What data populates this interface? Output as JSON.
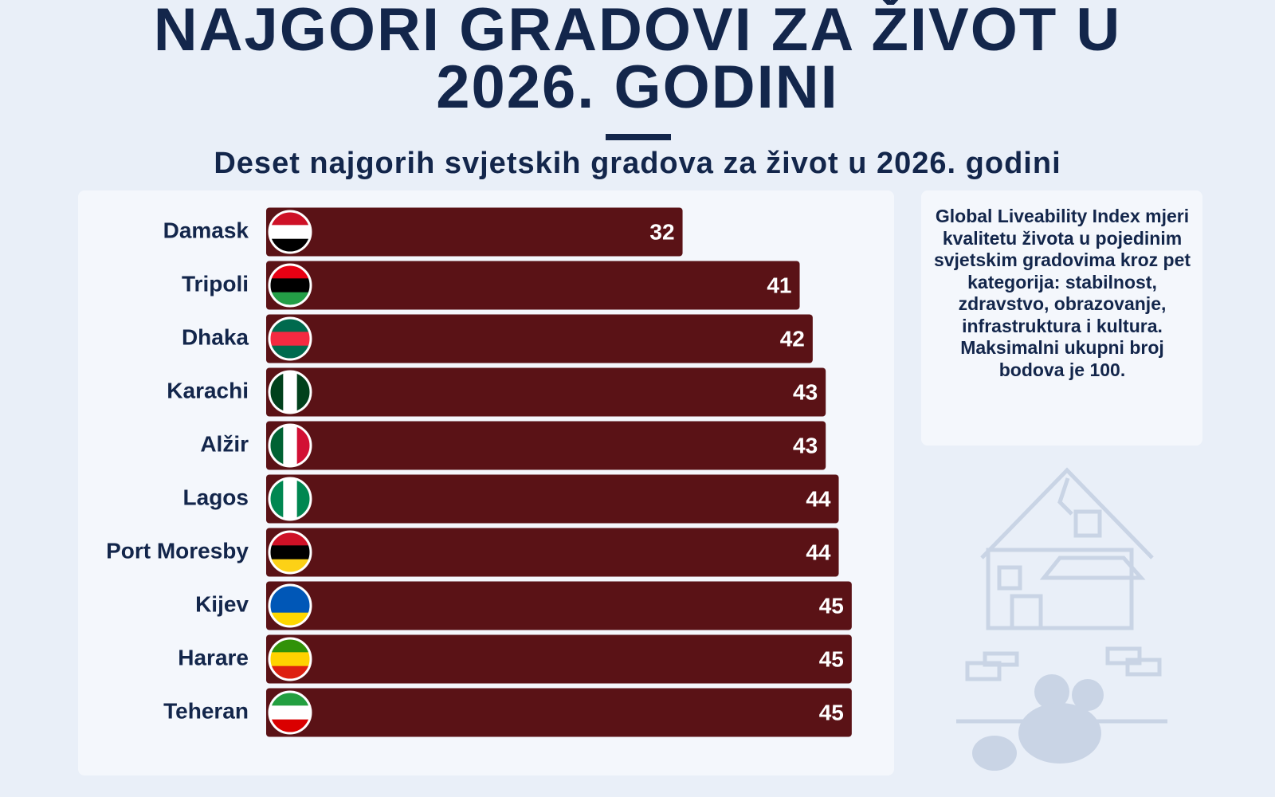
{
  "chart_data": {
    "type": "bar",
    "orientation": "horizontal",
    "title": "NAJGORI GRADOVI ZA ŽIVOT U 2026. GODINI",
    "subtitle": "Deset najgorih svjetskih gradova za život u 2026. godini",
    "categories": [
      "Damask",
      "Tripoli",
      "Dhaka",
      "Karachi",
      "Alžir",
      "Lagos",
      "Port Moresby",
      "Kijev",
      "Harare",
      "Teheran"
    ],
    "values": [
      32,
      41,
      42,
      43,
      43,
      44,
      44,
      45,
      45,
      45
    ],
    "color": "#5a1216",
    "note": "Global Liveability Index mjeri kvalitetu života u pojedinim svjetskim gradovima kroz pet kategorija: stabilnost, zdravstvo, obrazovanje, infrastruktura i kultura. Maksimalni ukupni broj bodova je 100."
  }
}
